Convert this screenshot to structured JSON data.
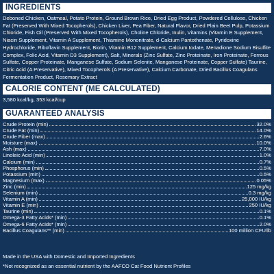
{
  "ingredients": {
    "header": "INGREDIENTS",
    "text": "Deboned Chicken, Oatmeal, Potato Protein, Ground Brown Rice, Dried Egg Product, Powdered Cellulose, Chicken Fat (Preserved With Mixed Tocopherols), Chicken Liver, Pea Fiber, Natural Flavor, Dried Plain Beet Pulp, Potassium Chloride, Fish Oil (Preserved With Mixed Tocopherols), Choline Chloride, Inulin, Vitamins (Vitamin E Supplement, Niacin Supplement, Vitamin A Supplement, Thiamine Mononitrate, d-Calcium Pantothenate, Pyridoxine Hydrochloride, Riboflavin Supplement, Biotin, Vitamin B12 Supplement, Calcium Iodate, Menadione Sodium Bisulfite Complex, Folic Acid, Vitamin D3 Supplement), Salt, Minerals (Zinc Sulfate, Zinc Proteinate, Iron Proteinate, Ferrous Sulfate, Copper Proteinate, Manganese Sulfate, Sodium Selenite, Manganese Proteinate, Copper Sulfate) Taurine, Citric Acid (A Preservative), Mixed Tocopherols (A Preservative), Calcium Carbonate, Dried Bacillus Coagulans Fermentation Product, Rosemary Extract"
  },
  "calorie": {
    "header": "CALORIE CONTENT (ME CALCULATED)",
    "text": "3,580 kcal/kg, 353 kcal/cup"
  },
  "analysis": {
    "header": "GUARANTEED ANALYSIS",
    "rows": [
      {
        "name": "Crude Protein (min)",
        "value": "32.0%"
      },
      {
        "name": "Crude Fat (min)",
        "value": "14.0%"
      },
      {
        "name": "Crude Fiber (max)",
        "value": "2.6%"
      },
      {
        "name": "Moisture (max)",
        "value": "10.0%"
      },
      {
        "name": "Ash (max)",
        "value": "7.0%"
      },
      {
        "name": "Linoleic Acid (min)",
        "value": "1.0%"
      },
      {
        "name": "Calcium (min)",
        "value": "0.7%"
      },
      {
        "name": "Phosphorus (min)",
        "value": "0.5%"
      },
      {
        "name": "Potassium (min)",
        "value": "0.5%"
      },
      {
        "name": "Magnesium (max)",
        "value": "0.05%"
      },
      {
        "name": "Zinc (min)",
        "value": "125 mg/kg"
      },
      {
        "name": "Selenium (min)",
        "value": "0.3 mg/kg"
      },
      {
        "name": "Vitamin A (min)",
        "value": "25,000 IU/kg"
      },
      {
        "name": "Vitamin E (min)",
        "value": "250 IU/kg"
      },
      {
        "name": "Taurine (min)",
        "value": "0.1%"
      },
      {
        "name": "Omega-3 Fatty Acids* (min)",
        "value": "0.1%"
      },
      {
        "name": "Omega-6 Fatty Acids* (min)",
        "value": "2.0%"
      },
      {
        "name": "Bacillus Coagulans** (min)",
        "value": "100 million CFU/lb"
      }
    ]
  },
  "footer": {
    "made_in": "Made in the USA with Domestic and Imported Ingredients",
    "note": "*Not recognized as an essential nutrient by the AAFCO Cat Food Nutrient Profiles"
  }
}
